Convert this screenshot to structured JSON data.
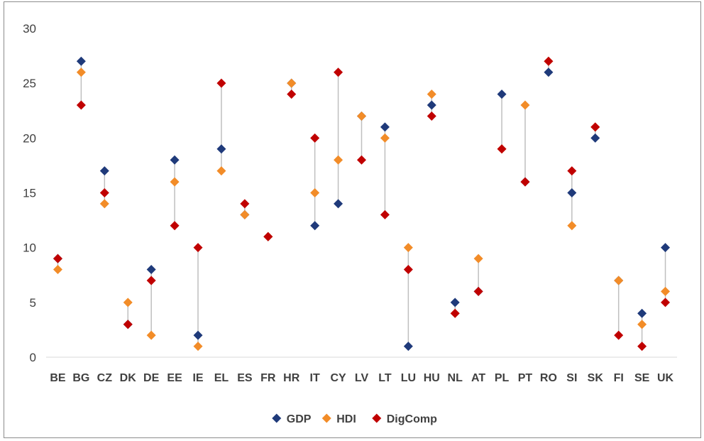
{
  "chart_data": {
    "type": "scatter",
    "categories": [
      "BE",
      "BG",
      "CZ",
      "DK",
      "DE",
      "EE",
      "IE",
      "EL",
      "ES",
      "FR",
      "HR",
      "IT",
      "CY",
      "LV",
      "LT",
      "LU",
      "HU",
      "NL",
      "AT",
      "PL",
      "PT",
      "RO",
      "SI",
      "SK",
      "FI",
      "SE",
      "UK"
    ],
    "series": [
      {
        "name": "GDP",
        "color": "#1f3a7a",
        "values": [
          9,
          27,
          17,
          3,
          8,
          18,
          2,
          19,
          13,
          11,
          25,
          12,
          14,
          22,
          21,
          1,
          23,
          5,
          6,
          24,
          16,
          26,
          15,
          20,
          7,
          4,
          10
        ]
      },
      {
        "name": "HDI",
        "color": "#f28c28",
        "values": [
          8,
          26,
          14,
          5,
          2,
          16,
          1,
          17,
          13,
          11,
          25,
          15,
          18,
          22,
          20,
          10,
          24,
          4,
          9,
          19,
          23,
          27,
          12,
          21,
          7,
          3,
          6
        ]
      },
      {
        "name": "DigComp",
        "color": "#c00000",
        "values": [
          9,
          23,
          15,
          3,
          7,
          12,
          10,
          25,
          14,
          11,
          24,
          20,
          26,
          18,
          13,
          8,
          22,
          4,
          6,
          19,
          16,
          27,
          17,
          21,
          2,
          1,
          5
        ]
      }
    ],
    "ylim": [
      0,
      30
    ],
    "yticks": [
      0,
      5,
      10,
      15,
      20,
      25,
      30
    ],
    "grid": false,
    "legend_position": "bottom",
    "range_line_color": "#bfbfbf"
  }
}
